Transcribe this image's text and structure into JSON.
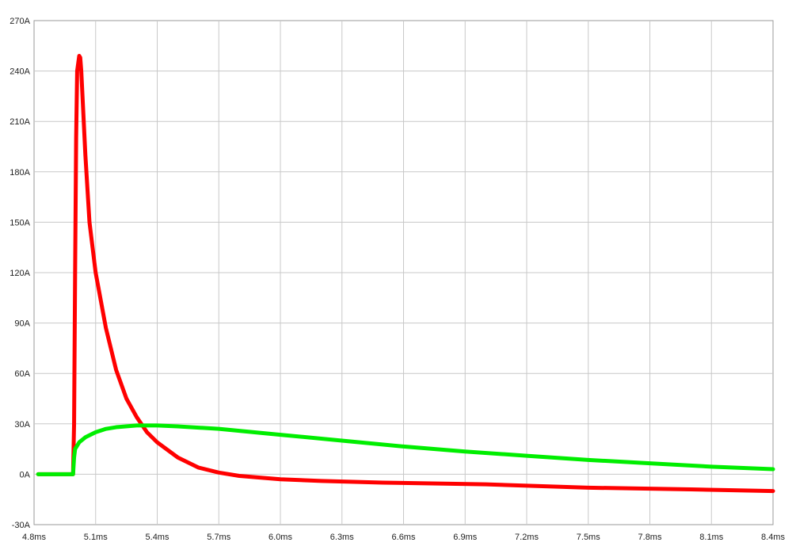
{
  "chart_data": {
    "type": "line",
    "title": "",
    "xlabel": "",
    "ylabel": "",
    "xlim": [
      4.8,
      8.4
    ],
    "ylim": [
      -30,
      270
    ],
    "grid": true,
    "x_ticks": [
      "4.8ms",
      "5.1ms",
      "5.4ms",
      "5.7ms",
      "6.0ms",
      "6.3ms",
      "6.6ms",
      "6.9ms",
      "7.2ms",
      "7.5ms",
      "7.8ms",
      "8.1ms",
      "8.4ms"
    ],
    "y_ticks": [
      "-30A",
      "0A",
      "30A",
      "60A",
      "90A",
      "120A",
      "150A",
      "180A",
      "210A",
      "240A",
      "270A"
    ],
    "series": [
      {
        "color": "#ff0000",
        "x": [
          4.82,
          4.99,
          4.995,
          5.0,
          5.005,
          5.01,
          5.02,
          5.025,
          5.03,
          5.04,
          5.05,
          5.07,
          5.1,
          5.15,
          5.2,
          5.25,
          5.3,
          5.35,
          5.4,
          5.5,
          5.6,
          5.7,
          5.8,
          5.9,
          6.0,
          6.2,
          6.5,
          7.0,
          7.5,
          8.0,
          8.4
        ],
        "values": [
          0,
          0,
          30,
          120,
          200,
          240,
          249,
          248,
          240,
          215,
          190,
          150,
          120,
          87,
          62,
          45,
          34,
          25,
          19,
          10,
          4,
          1,
          -1,
          -2,
          -3,
          -4,
          -5,
          -6,
          -8,
          -9,
          -10
        ]
      },
      {
        "color": "#00ee00",
        "x": [
          4.82,
          4.99,
          4.995,
          5.0,
          5.02,
          5.05,
          5.1,
          5.15,
          5.2,
          5.3,
          5.4,
          5.5,
          5.7,
          6.0,
          6.3,
          6.6,
          6.9,
          7.2,
          7.5,
          7.8,
          8.1,
          8.4
        ],
        "values": [
          0,
          0,
          10,
          15,
          19,
          22,
          25,
          27,
          28,
          29,
          29,
          28.5,
          27,
          23.5,
          20,
          16.5,
          13.5,
          11,
          8.5,
          6.5,
          4.5,
          3
        ]
      }
    ]
  }
}
